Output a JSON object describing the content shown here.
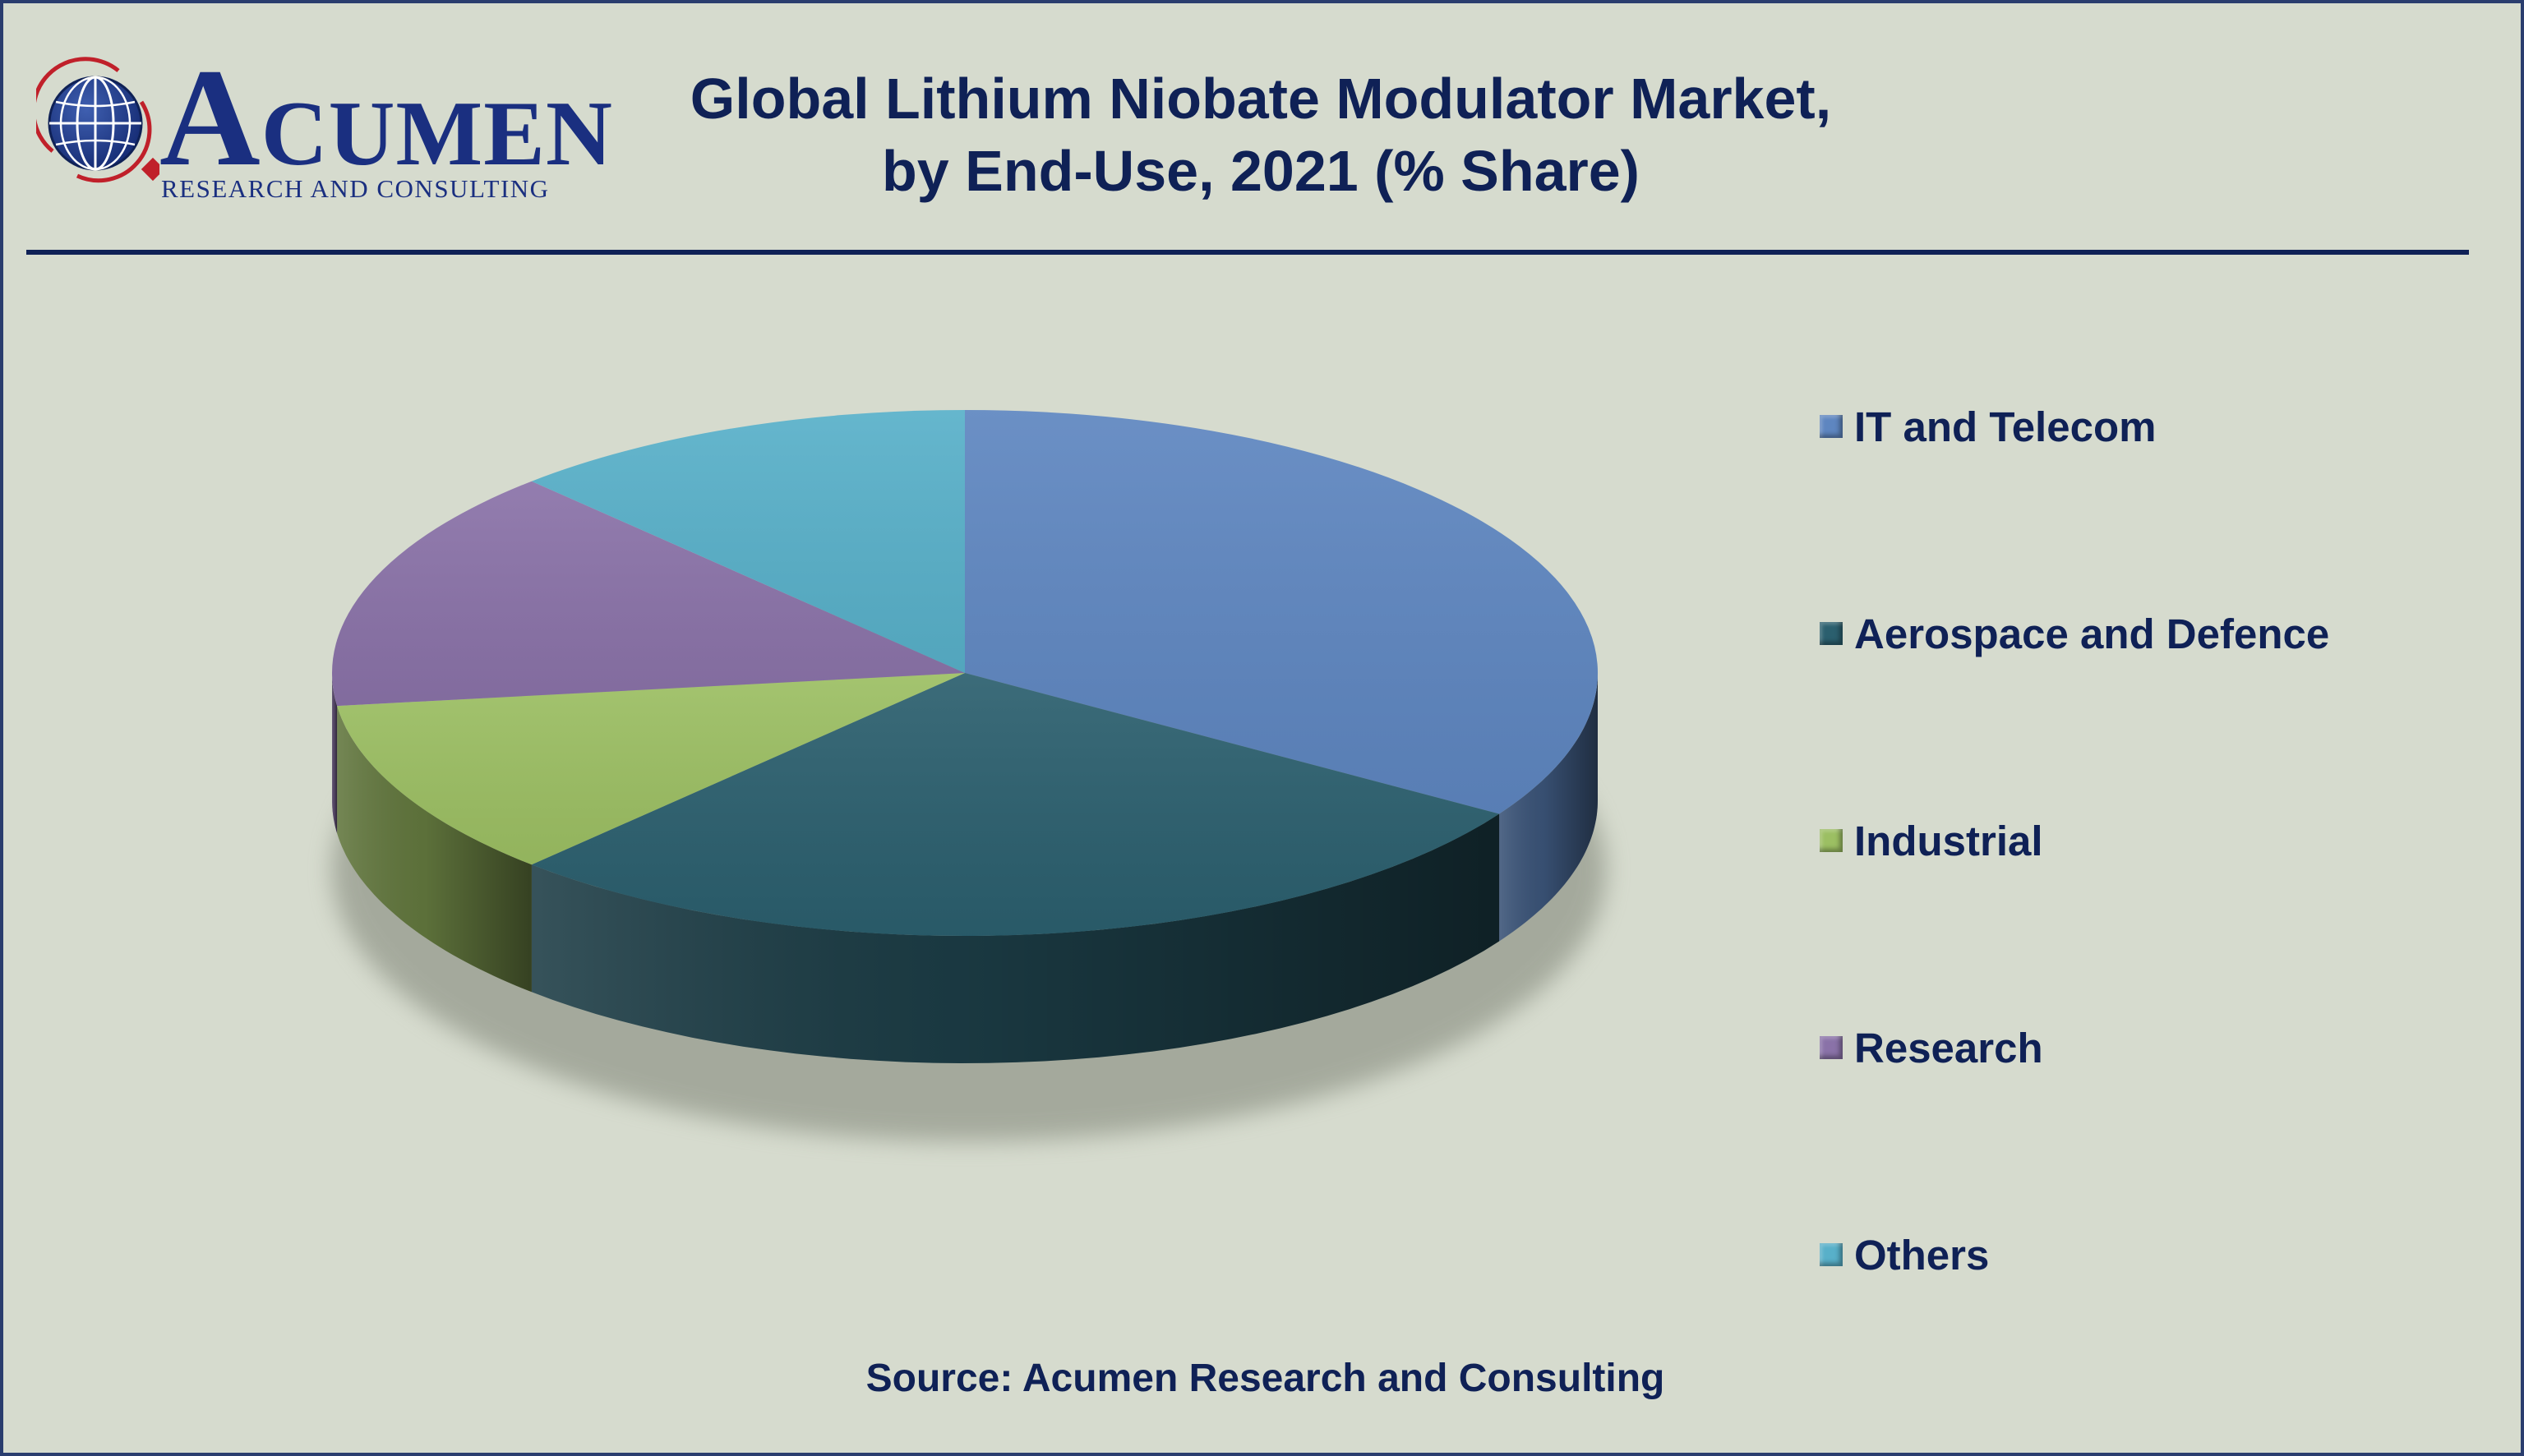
{
  "logo": {
    "word_first": "A",
    "word_rest": "CUMEN",
    "subtitle": "RESEARCH AND CONSULTING"
  },
  "source": "Source: Acumen Research and Consulting",
  "chart_data": {
    "type": "pie",
    "title": "Global Lithium Niobate Modulator Market,",
    "subtitle": "by End-Use, 2021 (% Share)",
    "style": "3d-pie",
    "legend_position": "right",
    "categories": [
      "IT and Telecom",
      "Aerospace and Defence",
      "Industrial",
      "Research",
      "Others"
    ],
    "values": [
      34,
      28,
      11,
      15,
      12
    ],
    "colors": [
      "#5e86c0",
      "#2b5f6e",
      "#9cbf63",
      "#8a72a8",
      "#58b0c9"
    ],
    "unit": "%"
  }
}
